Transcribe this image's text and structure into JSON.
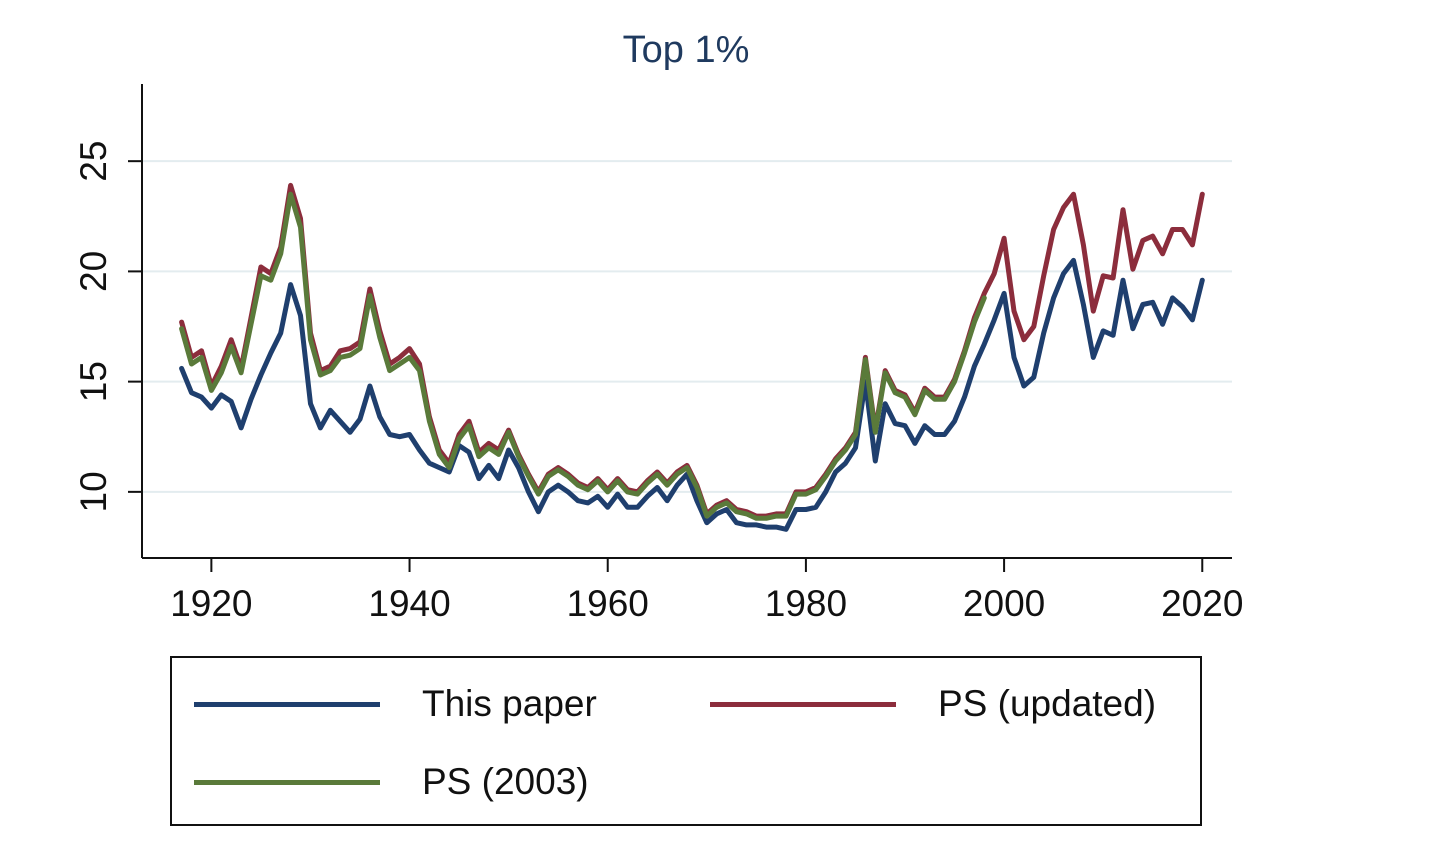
{
  "chart_data": {
    "type": "line",
    "title": "Top 1%",
    "xlabel": "",
    "ylabel": "",
    "xlim": [
      1913,
      2023
    ],
    "ylim": [
      7.0,
      28.5
    ],
    "x_ticks": [
      "1920",
      "1940",
      "1960",
      "1980",
      "2000",
      "2020"
    ],
    "y_ticks": [
      "10",
      "15",
      "20",
      "25"
    ],
    "grid": "horizontal",
    "legend_position": "bottom",
    "series": [
      {
        "name": "This paper",
        "color": "#1f3f6e",
        "x": [
          1917,
          1918,
          1919,
          1920,
          1921,
          1922,
          1923,
          1924,
          1925,
          1926,
          1927,
          1928,
          1929,
          1930,
          1931,
          1932,
          1933,
          1934,
          1935,
          1936,
          1937,
          1938,
          1939,
          1940,
          1941,
          1942,
          1943,
          1944,
          1945,
          1946,
          1947,
          1948,
          1949,
          1950,
          1951,
          1952,
          1953,
          1954,
          1955,
          1956,
          1957,
          1958,
          1959,
          1960,
          1961,
          1962,
          1963,
          1964,
          1965,
          1966,
          1967,
          1968,
          1969,
          1970,
          1971,
          1972,
          1973,
          1974,
          1975,
          1976,
          1977,
          1978,
          1979,
          1980,
          1981,
          1982,
          1983,
          1984,
          1985,
          1986,
          1987,
          1988,
          1989,
          1990,
          1991,
          1992,
          1993,
          1994,
          1995,
          1996,
          1997,
          1998,
          1999,
          2000,
          2001,
          2002,
          2003,
          2004,
          2005,
          2006,
          2007,
          2008,
          2009,
          2010,
          2011,
          2012,
          2013,
          2014,
          2015,
          2016,
          2017,
          2018,
          2019,
          2020
        ],
        "y": [
          15.6,
          14.5,
          14.3,
          13.8,
          14.4,
          14.1,
          12.9,
          14.2,
          15.3,
          16.3,
          17.2,
          19.4,
          18.0,
          14.0,
          12.9,
          13.7,
          13.2,
          12.7,
          13.3,
          14.8,
          13.4,
          12.6,
          12.5,
          12.6,
          11.9,
          11.3,
          11.1,
          10.9,
          12.1,
          11.8,
          10.6,
          11.2,
          10.6,
          11.9,
          11.1,
          10.0,
          9.1,
          10.0,
          10.3,
          10.0,
          9.6,
          9.5,
          9.8,
          9.3,
          9.9,
          9.3,
          9.3,
          9.8,
          10.2,
          9.6,
          10.3,
          10.8,
          9.6,
          8.6,
          9.0,
          9.2,
          8.6,
          8.5,
          8.5,
          8.4,
          8.4,
          8.3,
          9.2,
          9.2,
          9.3,
          10.0,
          10.9,
          11.3,
          12.0,
          15.0,
          11.4,
          14.0,
          13.1,
          13.0,
          12.2,
          13.0,
          12.6,
          12.6,
          13.2,
          14.3,
          15.7,
          16.7,
          17.8,
          19.0,
          16.1,
          14.8,
          15.2,
          17.2,
          18.8,
          19.9,
          20.5,
          18.5,
          16.1,
          17.3,
          17.1,
          19.6,
          17.4,
          18.5,
          18.6,
          17.6,
          18.8,
          18.4,
          17.8,
          19.6
        ]
      },
      {
        "name": "PS (updated)",
        "color": "#8c2d3c",
        "x": [
          1917,
          1918,
          1919,
          1920,
          1921,
          1922,
          1923,
          1924,
          1925,
          1926,
          1927,
          1928,
          1929,
          1930,
          1931,
          1932,
          1933,
          1934,
          1935,
          1936,
          1937,
          1938,
          1939,
          1940,
          1941,
          1942,
          1943,
          1944,
          1945,
          1946,
          1947,
          1948,
          1949,
          1950,
          1951,
          1952,
          1953,
          1954,
          1955,
          1956,
          1957,
          1958,
          1959,
          1960,
          1961,
          1962,
          1963,
          1964,
          1965,
          1966,
          1967,
          1968,
          1969,
          1970,
          1971,
          1972,
          1973,
          1974,
          1975,
          1976,
          1977,
          1978,
          1979,
          1980,
          1981,
          1982,
          1983,
          1984,
          1985,
          1986,
          1987,
          1988,
          1989,
          1990,
          1991,
          1992,
          1993,
          1994,
          1995,
          1996,
          1997,
          1998,
          1999,
          2000,
          2001,
          2002,
          2003,
          2004,
          2005,
          2006,
          2007,
          2008,
          2009,
          2010,
          2011,
          2012,
          2013,
          2014,
          2015,
          2016,
          2017,
          2018,
          2019,
          2020
        ],
        "y": [
          17.7,
          16.1,
          16.4,
          14.8,
          15.7,
          16.9,
          15.6,
          17.9,
          20.2,
          19.9,
          21.1,
          23.9,
          22.4,
          17.2,
          15.5,
          15.7,
          16.4,
          16.5,
          16.8,
          19.2,
          17.3,
          15.8,
          16.1,
          16.5,
          15.8,
          13.4,
          11.9,
          11.3,
          12.6,
          13.2,
          11.8,
          12.2,
          11.9,
          12.8,
          11.7,
          10.8,
          10.0,
          10.8,
          11.1,
          10.8,
          10.4,
          10.2,
          10.6,
          10.1,
          10.6,
          10.1,
          10.0,
          10.5,
          10.9,
          10.4,
          10.9,
          11.2,
          10.3,
          9.0,
          9.4,
          9.6,
          9.2,
          9.1,
          8.9,
          8.9,
          9.0,
          9.0,
          10.0,
          10.0,
          10.2,
          10.8,
          11.5,
          12.0,
          12.7,
          16.1,
          12.8,
          15.5,
          14.6,
          14.4,
          13.6,
          14.7,
          14.3,
          14.3,
          15.1,
          16.4,
          17.9,
          19.0,
          19.9,
          21.5,
          18.2,
          16.9,
          17.5,
          19.8,
          21.9,
          22.9,
          23.5,
          21.2,
          18.2,
          19.8,
          19.7,
          22.8,
          20.1,
          21.4,
          21.6,
          20.8,
          21.9,
          21.9,
          21.2,
          23.5
        ]
      },
      {
        "name": "PS (2003)",
        "color": "#5a7a3a",
        "x": [
          1917,
          1918,
          1919,
          1920,
          1921,
          1922,
          1923,
          1924,
          1925,
          1926,
          1927,
          1928,
          1929,
          1930,
          1931,
          1932,
          1933,
          1934,
          1935,
          1936,
          1937,
          1938,
          1939,
          1940,
          1941,
          1942,
          1943,
          1944,
          1945,
          1946,
          1947,
          1948,
          1949,
          1950,
          1951,
          1952,
          1953,
          1954,
          1955,
          1956,
          1957,
          1958,
          1959,
          1960,
          1961,
          1962,
          1963,
          1964,
          1965,
          1966,
          1967,
          1968,
          1969,
          1970,
          1971,
          1972,
          1973,
          1974,
          1975,
          1976,
          1977,
          1978,
          1979,
          1980,
          1981,
          1982,
          1983,
          1984,
          1985,
          1986,
          1987,
          1988,
          1989,
          1990,
          1991,
          1992,
          1993,
          1994,
          1995,
          1996,
          1997,
          1998
        ],
        "y": [
          17.4,
          15.8,
          16.1,
          14.6,
          15.4,
          16.6,
          15.4,
          17.6,
          19.8,
          19.6,
          20.8,
          23.5,
          22.0,
          16.9,
          15.3,
          15.5,
          16.1,
          16.2,
          16.5,
          18.9,
          17.0,
          15.5,
          15.8,
          16.1,
          15.5,
          13.2,
          11.7,
          11.1,
          12.4,
          13.0,
          11.6,
          12.0,
          11.7,
          12.7,
          11.6,
          10.7,
          9.9,
          10.7,
          11.0,
          10.7,
          10.3,
          10.1,
          10.5,
          10.0,
          10.5,
          10.0,
          9.9,
          10.4,
          10.8,
          10.3,
          10.8,
          11.1,
          10.2,
          8.9,
          9.3,
          9.5,
          9.1,
          9.0,
          8.8,
          8.8,
          8.9,
          8.9,
          9.9,
          9.9,
          10.1,
          10.7,
          11.4,
          11.9,
          12.6,
          16.0,
          12.7,
          15.4,
          14.5,
          14.3,
          13.5,
          14.6,
          14.2,
          14.2,
          15.0,
          16.3,
          17.7,
          18.8
        ]
      }
    ]
  }
}
